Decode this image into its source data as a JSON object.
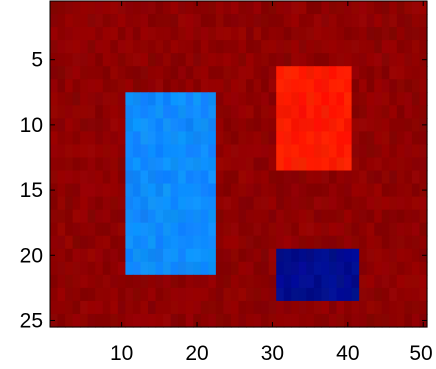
{
  "chart_data": {
    "type": "heatmap",
    "title": "",
    "xlabel": "",
    "ylabel": "",
    "xlim": [
      0.5,
      50.5
    ],
    "ylim": [
      0.5,
      25.5
    ],
    "y_reversed": true,
    "x_ticks": [
      10,
      20,
      30,
      40,
      50
    ],
    "y_ticks": [
      5,
      10,
      15,
      20,
      25
    ],
    "grid": false,
    "legend": "none",
    "colormap": "jet",
    "background": {
      "value_label": "background",
      "color": "#8e0000"
    },
    "regions": [
      {
        "x": [
          11,
          22
        ],
        "y": [
          8,
          21
        ],
        "color": "#0f8cff"
      },
      {
        "x": [
          31,
          40
        ],
        "y": [
          6,
          13
        ],
        "color": "#ff1a00"
      },
      {
        "x": [
          31,
          41
        ],
        "y": [
          20,
          23
        ],
        "color": "#000d8e"
      }
    ]
  },
  "colors": {
    "axis": "#000000",
    "page": "#ffffff"
  }
}
